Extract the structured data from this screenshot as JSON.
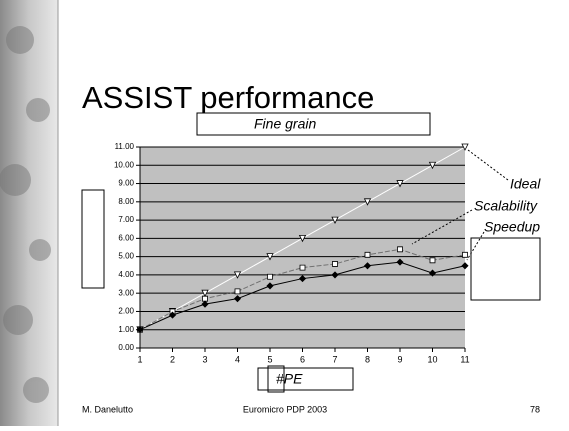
{
  "slide": {
    "title": "ASSIST performance",
    "footer_author": "M. Danelutto",
    "footer_event": "Euromicro PDP 2003",
    "footer_page": "78"
  },
  "chart_data": {
    "type": "line",
    "title": "Fine grain",
    "x_label": "#PE",
    "x": [
      1,
      2,
      3,
      4,
      5,
      6,
      7,
      8,
      9,
      10,
      11
    ],
    "xlim": [
      1,
      11
    ],
    "xticks": [
      1,
      2,
      3,
      4,
      5,
      6,
      7,
      8,
      9,
      10,
      11
    ],
    "ylim": [
      0,
      11
    ],
    "yticks": [
      {
        "value": 0,
        "label": "0.00"
      },
      {
        "value": 1,
        "label": "1.00"
      },
      {
        "value": 2,
        "label": "2.00"
      },
      {
        "value": 3,
        "label": "3.00"
      },
      {
        "value": 4,
        "label": "4.00"
      },
      {
        "value": 5,
        "label": "5.00"
      },
      {
        "value": 6,
        "label": "6.00"
      },
      {
        "value": 7,
        "label": "7.00"
      },
      {
        "value": 8,
        "label": "8.00"
      },
      {
        "value": 9,
        "label": "9.00"
      },
      {
        "value": 10,
        "label": "10.00"
      },
      {
        "value": 11,
        "label": "11.00"
      }
    ],
    "grid": true,
    "series": [
      {
        "name": "Ideal",
        "color": "#ffffff",
        "marker": "triangle",
        "values": [
          1,
          2,
          3,
          4,
          5,
          6,
          7,
          8,
          9,
          10,
          11
        ]
      },
      {
        "name": "Scalability",
        "color": "#707070",
        "marker": "square",
        "values": [
          1,
          2,
          2.7,
          3.1,
          3.9,
          4.4,
          4.6,
          5.1,
          5.4,
          4.8,
          5.1
        ]
      },
      {
        "name": "Speedup",
        "color": "#000000",
        "marker": "diamond",
        "values": [
          1,
          1.8,
          2.4,
          2.7,
          3.4,
          3.8,
          4.0,
          4.5,
          4.7,
          4.1,
          4.5
        ]
      }
    ]
  }
}
